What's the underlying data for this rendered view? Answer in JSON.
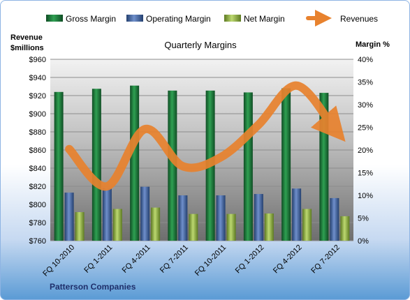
{
  "chart_data": {
    "type": "bar",
    "title": "Quarterly Margins",
    "footer": "Patterson Companies",
    "y_left_label_line1": "Revenue",
    "y_left_label_line2": "$millions",
    "y_right_label": "Margin %",
    "y_left_ticks": [
      "$760",
      "$780",
      "$800",
      "$820",
      "$840",
      "$860",
      "$880",
      "$900",
      "$920",
      "$940",
      "$960"
    ],
    "y_right_ticks": [
      "0%",
      "5%",
      "10%",
      "15%",
      "20%",
      "25%",
      "30%",
      "35%",
      "40%"
    ],
    "ylim_left": [
      760,
      960
    ],
    "ylim_right": [
      0,
      40
    ],
    "categories": [
      "FQ 10-2010",
      "FQ 1-2011",
      "FQ 4-2011",
      "FQ 7-2011",
      "FQ 10-2011",
      "FQ 1-2012",
      "FQ 4-2012",
      "FQ 7-2012"
    ],
    "legend_position": "top",
    "grid": true,
    "series": [
      {
        "name": "Gross Margin",
        "axis": "right",
        "kind": "bar",
        "color": "#1e7a3e",
        "values": [
          32.8,
          33.5,
          34.2,
          33.1,
          33.1,
          32.7,
          33.6,
          32.6
        ]
      },
      {
        "name": "Operating Margin",
        "axis": "right",
        "kind": "bar",
        "color": "#3e5f9e",
        "values": [
          10.6,
          11.6,
          11.9,
          10.0,
          10.0,
          10.3,
          11.5,
          9.4
        ]
      },
      {
        "name": "Net Margin",
        "axis": "right",
        "kind": "bar",
        "color": "#8db33e",
        "values": [
          6.3,
          7.0,
          7.3,
          5.9,
          5.9,
          6.0,
          7.0,
          5.4
        ]
      },
      {
        "name": "Revenues",
        "axis": "left",
        "kind": "line",
        "color": "#e46c0a",
        "values": [
          861,
          820,
          883,
          842,
          852,
          888,
          931,
          883
        ]
      }
    ]
  }
}
